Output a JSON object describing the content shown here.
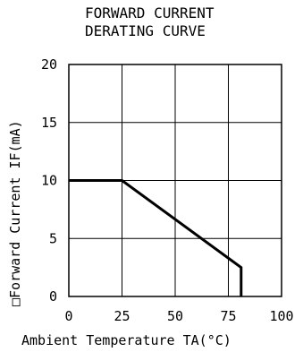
{
  "chart_data": {
    "type": "line",
    "title": [
      "FORWARD CURRENT",
      "DERATING CURVE"
    ],
    "xlabel": "Ambient Temperature TA(°C)",
    "ylabel": "□Forward Current IF(mA)",
    "xlim": [
      0,
      100
    ],
    "ylim": [
      0,
      20
    ],
    "x_ticks": [
      0,
      25,
      50,
      75,
      100
    ],
    "y_ticks": [
      0,
      5,
      10,
      15,
      20
    ],
    "grid": true,
    "series": [
      {
        "x": [
          0,
          25,
          81,
          81
        ],
        "y": [
          10,
          10,
          2.5,
          0
        ]
      }
    ]
  }
}
